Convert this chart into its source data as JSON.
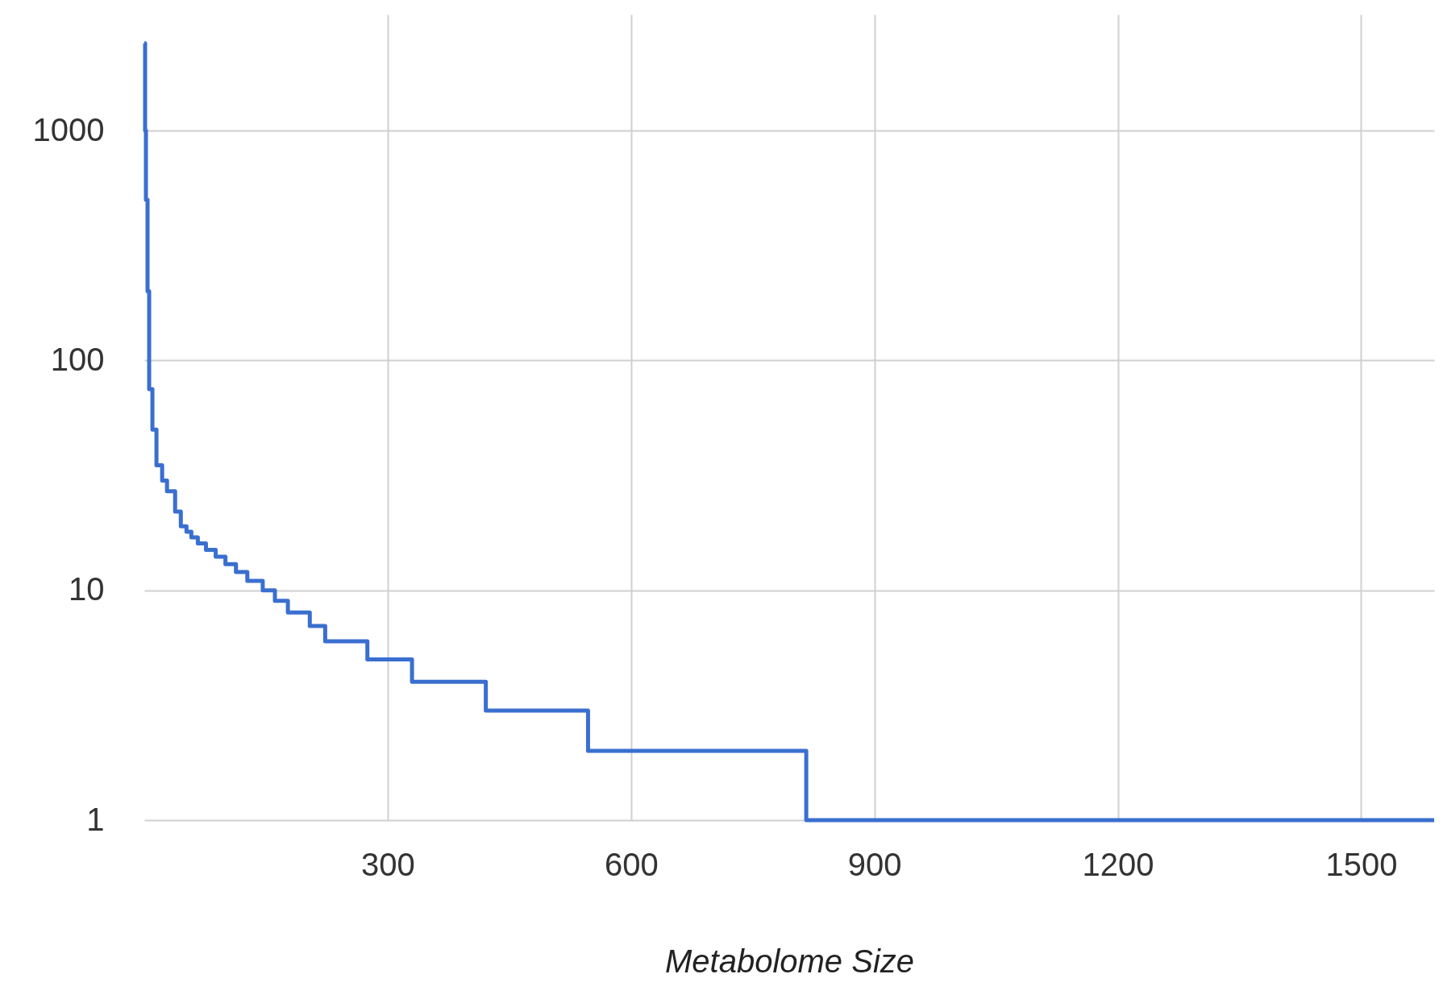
{
  "chart_data": {
    "type": "step",
    "xlabel": "Metabolome Size",
    "x": [
      0,
      1,
      2,
      4,
      6,
      10,
      15,
      22,
      28,
      38,
      45,
      52,
      58,
      66,
      76,
      88,
      100,
      113,
      127,
      146,
      161,
      177,
      204,
      223,
      275,
      330,
      421,
      547,
      816,
      1590
    ],
    "series": [
      {
        "color": "#3a6fd0",
        "values": [
          2400,
          1000,
          500,
          200,
          75,
          50,
          35,
          30,
          27,
          22,
          19,
          18,
          17,
          16,
          15,
          14,
          13,
          12,
          11,
          10,
          9,
          8,
          7,
          6,
          5,
          4,
          3,
          2,
          1,
          1
        ]
      }
    ],
    "xlim": [
      0,
      1590
    ],
    "ylim": [
      1,
      3200
    ],
    "xticks": [
      300,
      600,
      900,
      1200,
      1500
    ],
    "yticks": [
      1,
      10,
      100,
      1000
    ],
    "log": "y",
    "grid": true,
    "line_style": "solid",
    "marker": "none"
  }
}
